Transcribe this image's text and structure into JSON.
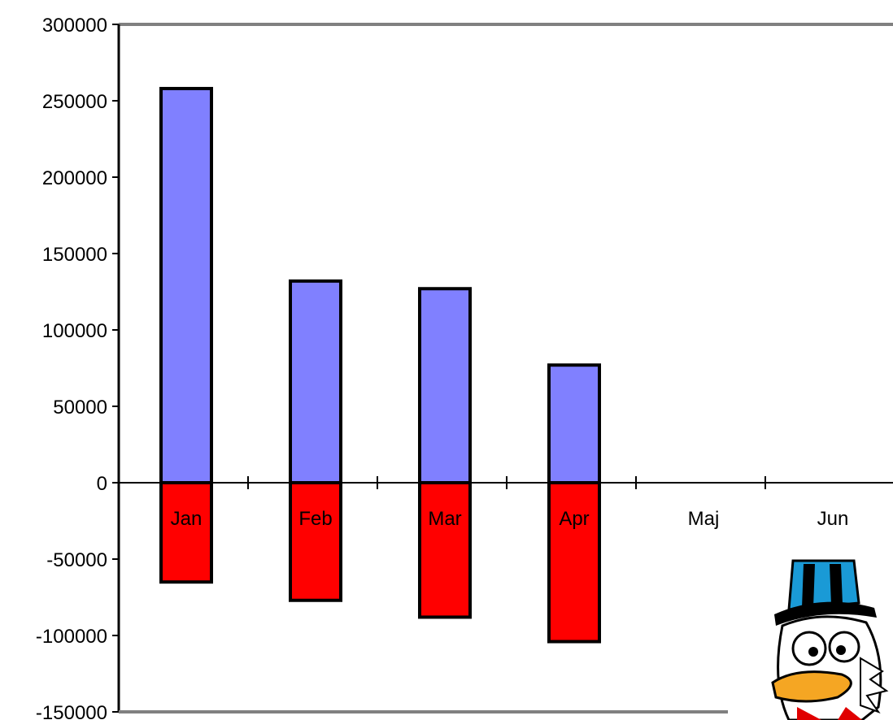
{
  "chart_data": {
    "type": "bar",
    "categories": [
      "Jan",
      "Feb",
      "Mar",
      "Apr",
      "Maj",
      "Jun"
    ],
    "series": [
      {
        "values": [
          258000,
          132000,
          127000,
          77000,
          null,
          null
        ],
        "color": "#8080ff"
      },
      {
        "values": [
          -65000,
          -77000,
          -88000,
          -104000,
          null,
          null
        ],
        "color": "#ff0000"
      }
    ],
    "stacked": true,
    "y_ticks": [
      "300000",
      "250000",
      "200000",
      "150000",
      "100000",
      "50000",
      "0",
      "-50000",
      "-100000",
      "-150000"
    ],
    "ylim": [
      -150000,
      300000
    ],
    "grid": false,
    "legend": "none",
    "gridline_color": "#808080",
    "bar_outline_color": "#000000",
    "decoration": {
      "name": "scrooge-mcduck-picture"
    }
  }
}
